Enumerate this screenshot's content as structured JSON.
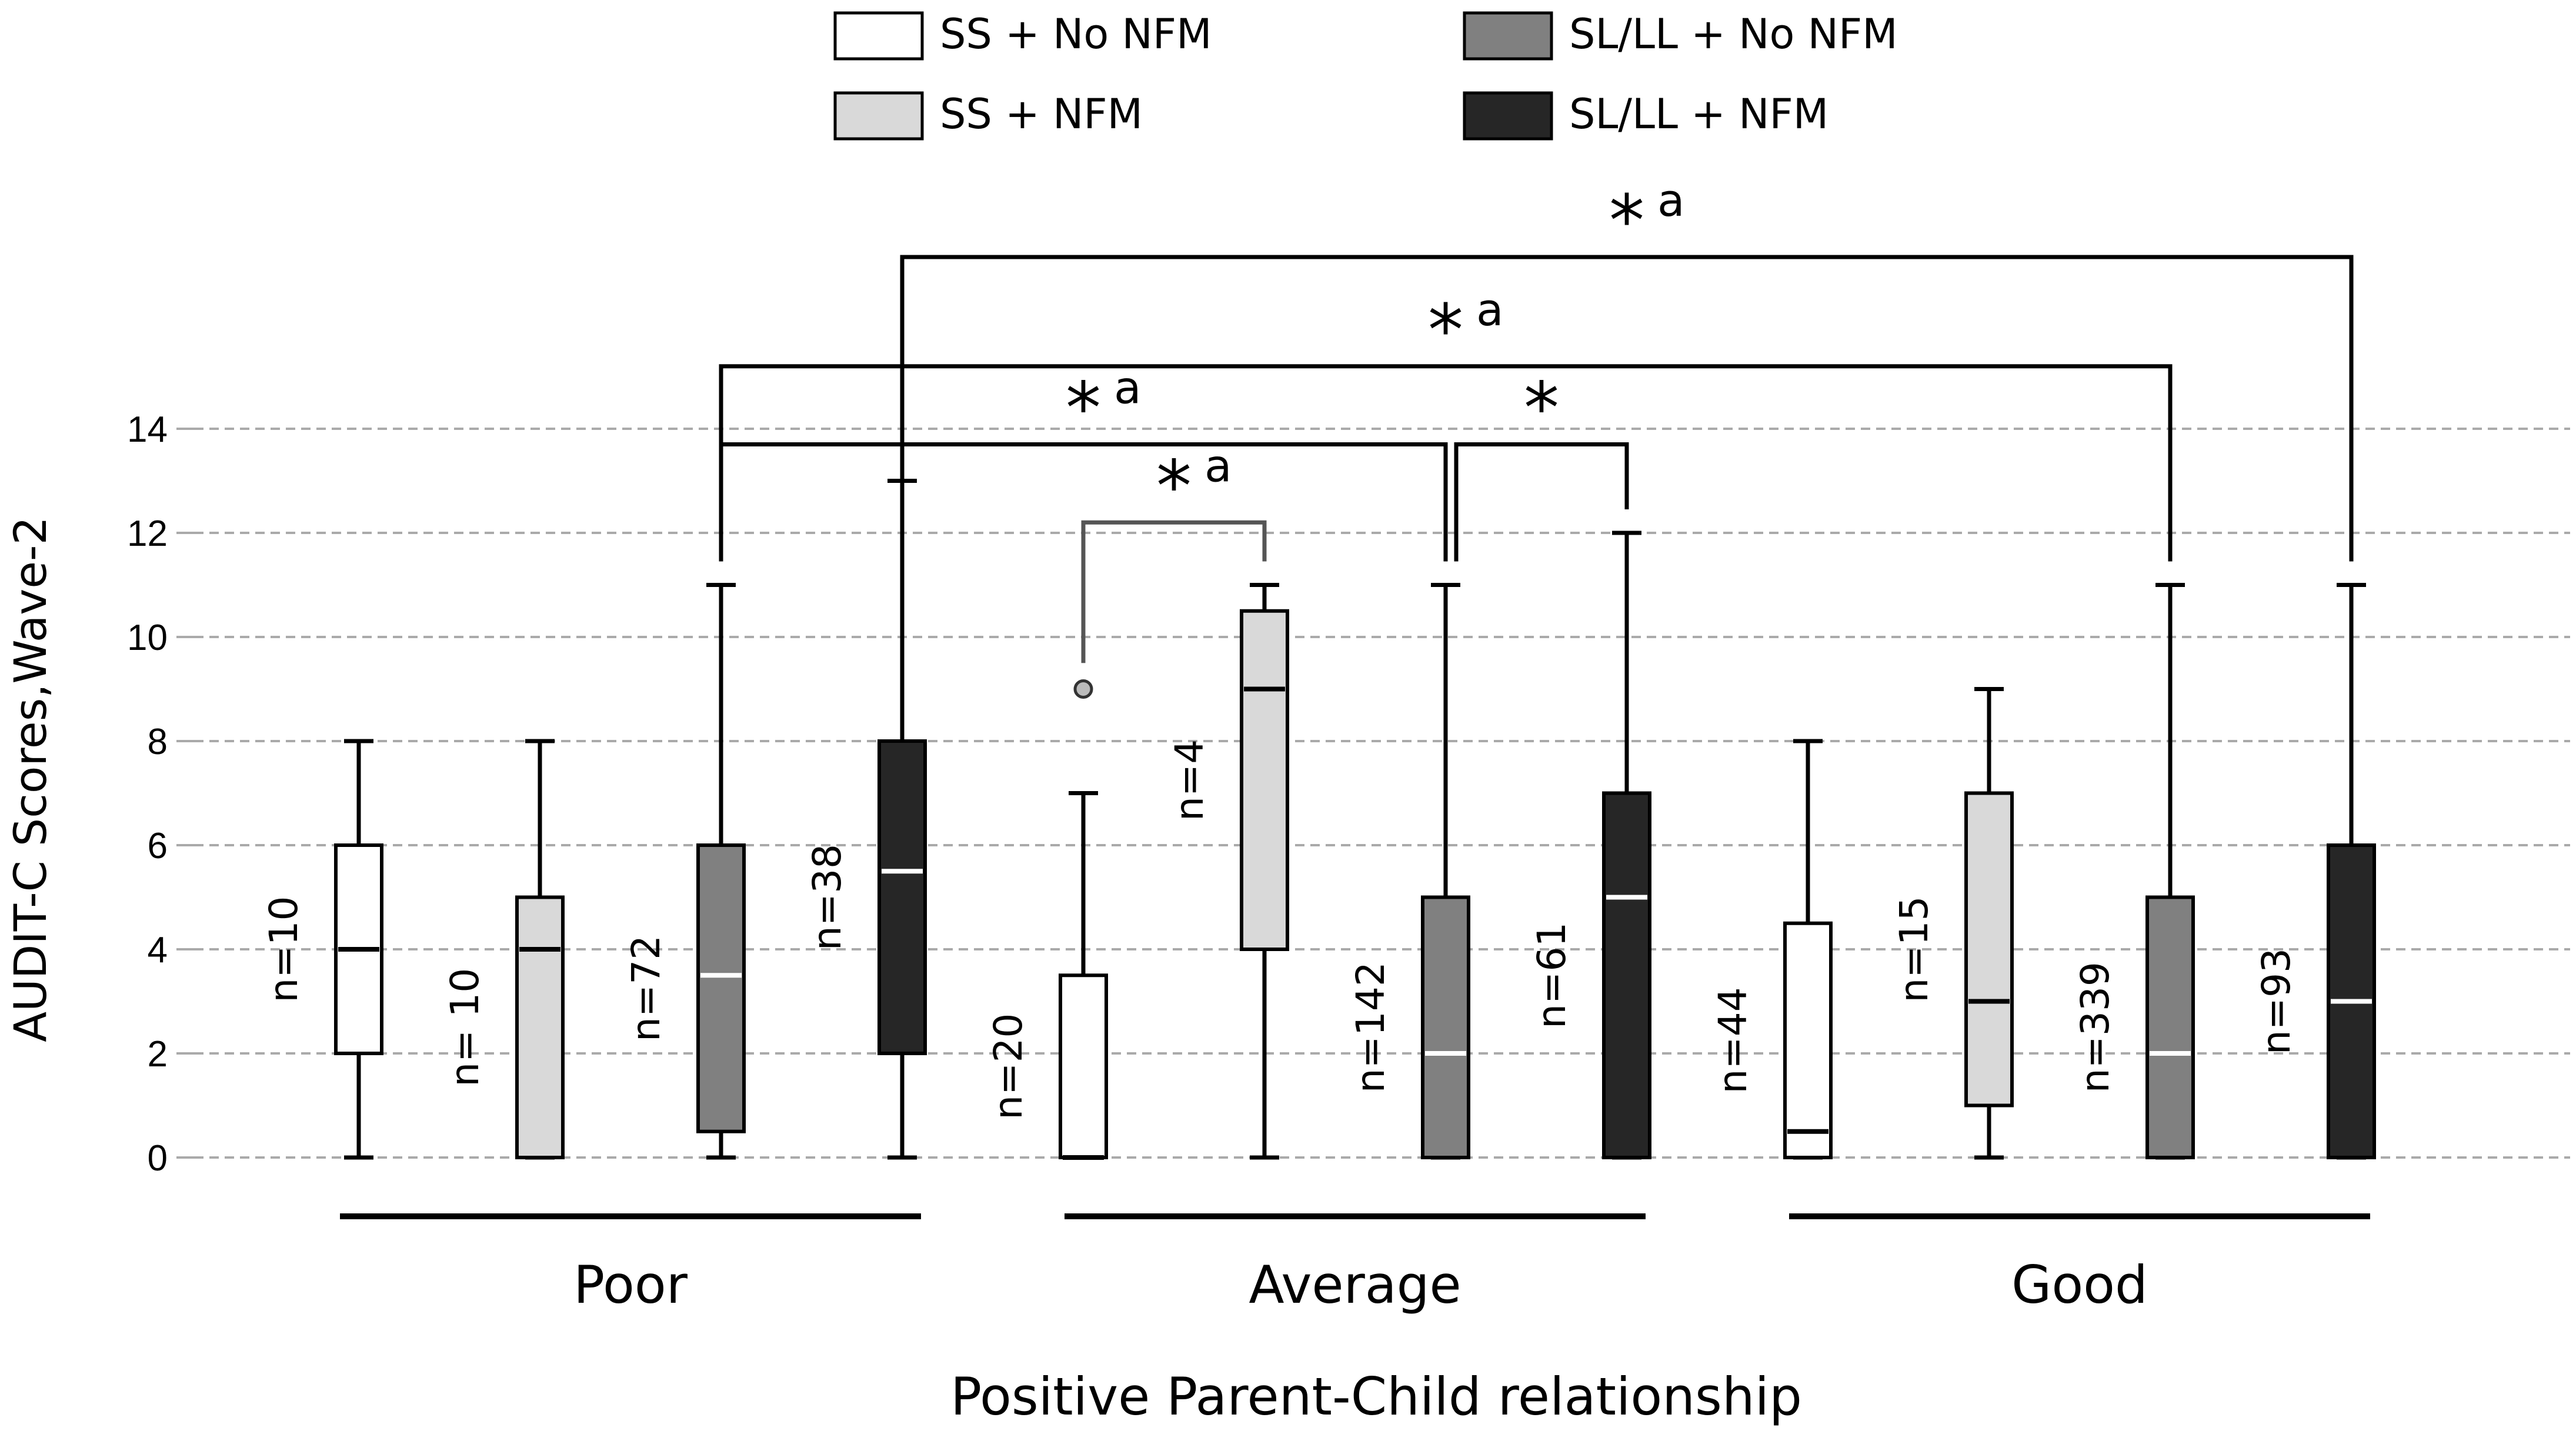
{
  "chart_data": {
    "type": "boxplot",
    "ylabel": "AUDIT-C Scores,Wave-2",
    "xlabel": "Positive Parent-Child relationship",
    "ylim": [
      0,
      14
    ],
    "yticks": [
      0,
      2,
      4,
      6,
      8,
      10,
      12,
      14
    ],
    "grid": "horizontal dashed",
    "legend_position": "top",
    "groups": [
      "Poor",
      "Average",
      "Good"
    ],
    "series": [
      {
        "name": "SS + No NFM",
        "color": "#ffffff",
        "median_color": "#000000"
      },
      {
        "name": "SS + NFM",
        "color": "#d9d9d9",
        "median_color": "#000000"
      },
      {
        "name": "SL/LL + No NFM",
        "color": "#808080",
        "median_color": "#ffffff"
      },
      {
        "name": "SL/LL + NFM",
        "color": "#262626",
        "median_color": "#ffffff"
      }
    ],
    "boxes": [
      {
        "group": "Poor",
        "series": "SS + No NFM",
        "min": 0,
        "q1": 2,
        "median": 4,
        "q3": 6,
        "max": 8,
        "n_label": "n=10",
        "outliers": []
      },
      {
        "group": "Poor",
        "series": "SS + NFM",
        "min": 0,
        "q1": 0,
        "median": 4,
        "q3": 5,
        "max": 8,
        "n_label": "n= 10",
        "outliers": []
      },
      {
        "group": "Poor",
        "series": "SL/LL + No NFM",
        "min": 0,
        "q1": 0.5,
        "median": 3.5,
        "q3": 6,
        "max": 11,
        "n_label": "n=72",
        "outliers": []
      },
      {
        "group": "Poor",
        "series": "SL/LL + NFM",
        "min": 0,
        "q1": 2,
        "median": 5.5,
        "q3": 8,
        "max": 13,
        "n_label": "n=38",
        "outliers": []
      },
      {
        "group": "Average",
        "series": "SS + No NFM",
        "min": 0,
        "q1": 0,
        "median": 0,
        "q3": 3.5,
        "max": 7,
        "n_label": "n=20",
        "outliers": [
          9
        ]
      },
      {
        "group": "Average",
        "series": "SS + NFM",
        "min": 0,
        "q1": 4,
        "median": 9,
        "q3": 10.5,
        "max": 11,
        "n_label": "n=4",
        "outliers": []
      },
      {
        "group": "Average",
        "series": "SL/LL + No NFM",
        "min": 0,
        "q1": 0,
        "median": 2,
        "q3": 5,
        "max": 11,
        "n_label": "n=142",
        "outliers": []
      },
      {
        "group": "Average",
        "series": "SL/LL + NFM",
        "min": 0,
        "q1": 0,
        "median": 5,
        "q3": 7,
        "max": 12,
        "n_label": "n=61",
        "outliers": []
      },
      {
        "group": "Good",
        "series": "SS + No NFM",
        "min": 0,
        "q1": 0,
        "median": 0.5,
        "q3": 4.5,
        "max": 8,
        "n_label": "n=44",
        "outliers": []
      },
      {
        "group": "Good",
        "series": "SS + NFM",
        "min": 0,
        "q1": 1,
        "median": 3,
        "q3": 7,
        "max": 9,
        "n_label": "n=15",
        "outliers": []
      },
      {
        "group": "Good",
        "series": "SL/LL + No NFM",
        "min": 0,
        "q1": 0,
        "median": 2,
        "q3": 5,
        "max": 11,
        "n_label": "n=339",
        "outliers": []
      },
      {
        "group": "Good",
        "series": "SL/LL + NFM",
        "min": 0,
        "q1": 0,
        "median": 3,
        "q3": 6,
        "max": 11,
        "n_label": "n=93",
        "outliers": []
      }
    ],
    "significance": [
      {
        "from": "Average / SS + No NFM",
        "to": "Average / SS + NFM",
        "level": 12.2,
        "label": "*",
        "sup": "a",
        "color": "#555555"
      },
      {
        "from": "Poor / SL/LL + No NFM",
        "to": "Average / SL/LL + No NFM",
        "level": 13.7,
        "label": "*",
        "sup": "a",
        "color": "#000000"
      },
      {
        "from": "Average / SL/LL + No NFM",
        "to": "Average / SL/LL + NFM",
        "level": 13.7,
        "label": "*",
        "sup": "",
        "color": "#000000"
      },
      {
        "from": "Poor / SL/LL + No NFM",
        "to": "Good / SL/LL + No NFM",
        "level": 15.2,
        "label": "*",
        "sup": "a",
        "color": "#000000"
      },
      {
        "from": "Poor / SL/LL + NFM",
        "to": "Good / SL/LL + NFM",
        "level": 17.3,
        "label": "*",
        "sup": "a",
        "color": "#000000"
      }
    ]
  }
}
